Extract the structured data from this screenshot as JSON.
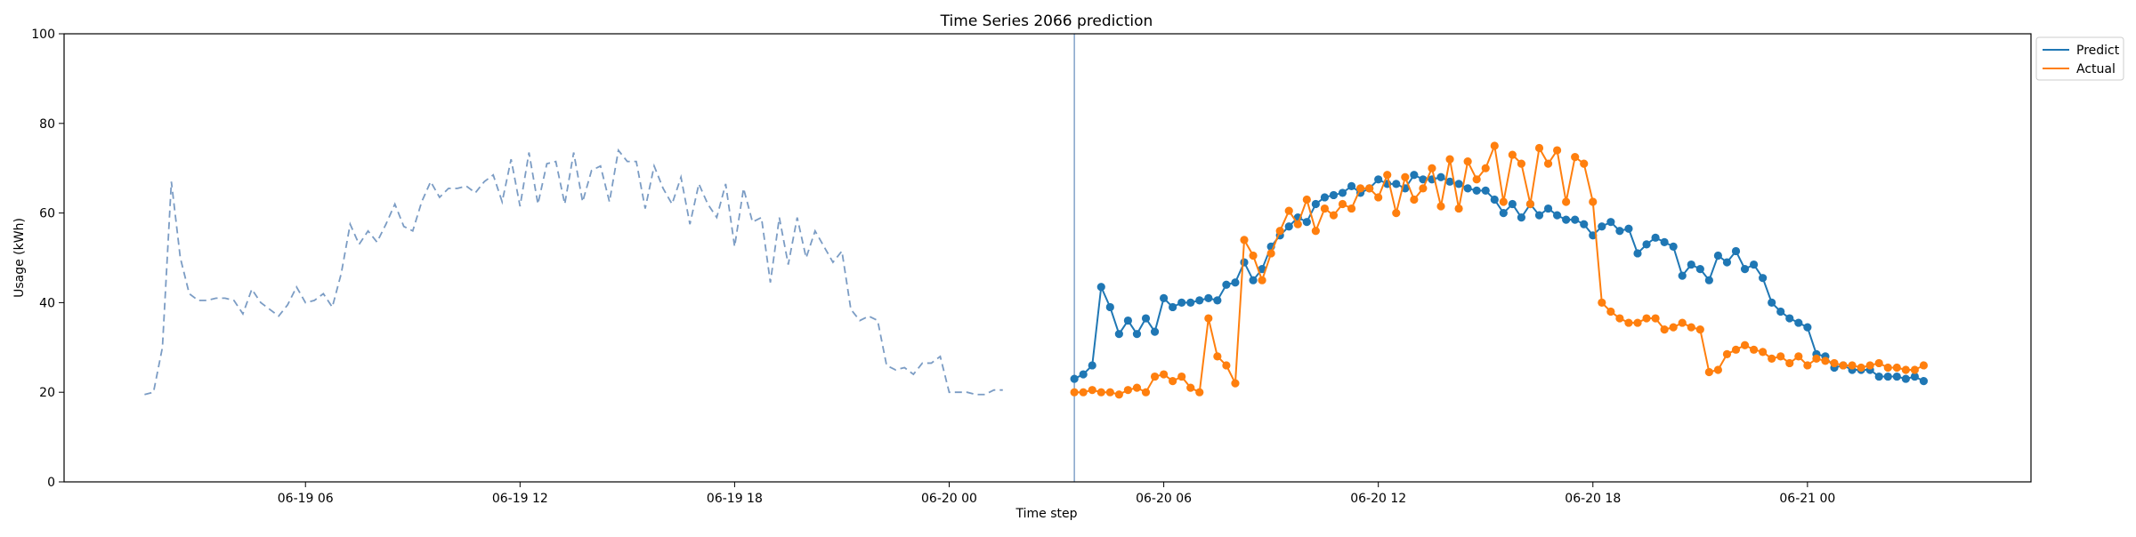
{
  "chart_data": {
    "type": "line",
    "title": "Time Series 2066 prediction",
    "xlabel": "Time step",
    "ylabel": "Usage (kWh)",
    "ylim": [
      0,
      100
    ],
    "y_ticks": [
      "0",
      "20",
      "40",
      "60",
      "80",
      "100"
    ],
    "x_ticks": [
      {
        "label": "06-19 06",
        "t": "06-19 06:00"
      },
      {
        "label": "06-19 12",
        "t": "06-19 12:00"
      },
      {
        "label": "06-19 18",
        "t": "06-19 18:00"
      },
      {
        "label": "06-20 00",
        "t": "06-20 00:00"
      },
      {
        "label": "06-20 06",
        "t": "06-20 06:00"
      },
      {
        "label": "06-20 12",
        "t": "06-20 12:00"
      },
      {
        "label": "06-20 18",
        "t": "06-20 18:00"
      },
      {
        "label": "06-21 00",
        "t": "06-21 00:00"
      }
    ],
    "xlim": [
      "06-18 23:15",
      "06-21 06:15"
    ],
    "vline_at": "06-20 03:30",
    "grid": false,
    "legend_position": "top-right",
    "history": {
      "start": "06-19 01:30",
      "step_minutes": 15,
      "color": "#7b9cc4",
      "style": "dashed",
      "values": [
        19.5,
        20,
        30,
        67,
        50,
        42,
        40.5,
        40.5,
        41,
        41,
        40.5,
        37.5,
        43,
        40,
        38.5,
        37,
        39.5,
        43.5,
        40,
        40.5,
        42,
        39,
        46.5,
        57.5,
        53,
        56,
        53.5,
        57.5,
        62,
        57,
        56,
        62.5,
        67,
        63.5,
        65.5,
        65.5,
        66,
        64.5,
        67,
        68.5,
        62.5,
        72,
        61.5,
        73.5,
        62,
        71,
        71.5,
        62,
        73.5,
        62.5,
        69.5,
        70.5,
        62.5,
        74,
        71.5,
        71.5,
        61,
        70.5,
        65.5,
        62,
        68,
        57.5,
        66.5,
        62,
        59,
        66.5,
        52.5,
        65.5,
        58,
        59,
        44.5,
        59,
        48.5,
        59,
        50,
        56,
        52.5,
        49,
        51.5,
        38.5,
        36,
        37,
        36,
        26,
        25,
        25.5,
        24,
        26.5,
        26.5,
        28,
        20,
        20,
        20,
        19.5,
        19.5,
        20.5,
        20.5
      ]
    },
    "series": [
      {
        "name": "Predict",
        "color": "#1f77b4",
        "start": "06-20 03:30",
        "step_minutes": 15,
        "values": [
          23,
          24,
          26,
          43.5,
          39,
          33,
          36,
          33,
          36.5,
          33.5,
          41,
          39,
          40,
          40,
          40.5,
          41,
          40.5,
          44,
          44.5,
          49,
          45,
          47.5,
          52.5,
          55,
          57,
          59,
          58,
          62,
          63.5,
          64,
          64.5,
          66,
          64.5,
          65.5,
          67.5,
          66.5,
          66.5,
          65.5,
          68.5,
          67.5,
          67.5,
          68,
          67,
          66.5,
          65.5,
          65,
          65,
          63,
          60,
          62,
          59,
          62,
          59.5,
          61,
          59.5,
          58.5,
          58.5,
          57.5,
          55,
          57,
          58,
          56,
          56.5,
          51,
          53,
          54.5,
          53.5,
          52.5,
          46,
          48.5,
          47.5,
          45,
          50.5,
          49,
          51.5,
          47.5,
          48.5,
          45.5,
          40,
          38,
          36.5,
          35.5,
          34.5,
          28.5,
          28,
          25.5,
          26,
          25,
          25,
          25,
          23.5,
          23.5,
          23.5,
          23,
          23.5,
          22.5
        ]
      },
      {
        "name": "Actual",
        "color": "#ff7f0e",
        "start": "06-20 03:30",
        "step_minutes": 15,
        "values": [
          20,
          20,
          20.5,
          20,
          20,
          19.5,
          20.5,
          21,
          20,
          23.5,
          24,
          22.5,
          23.5,
          21,
          20,
          36.5,
          28,
          26,
          22,
          54,
          50.5,
          45,
          51,
          56,
          60.5,
          57.5,
          63,
          56,
          61,
          59.5,
          62,
          61,
          65.5,
          65.5,
          63.5,
          68.5,
          60,
          68,
          63,
          65.5,
          70,
          61.5,
          72,
          61,
          71.5,
          67.5,
          70,
          75,
          62.5,
          73,
          71,
          62,
          74.5,
          71,
          74,
          62.5,
          72.5,
          71,
          62.5,
          40,
          38,
          36.5,
          35.5,
          35.5,
          36.5,
          36.5,
          34,
          34.5,
          35.5,
          34.5,
          34,
          24.5,
          25,
          28.5,
          29.5,
          30.5,
          29.5,
          29,
          27.5,
          28,
          26.5,
          28,
          26,
          27.5,
          27,
          26.5,
          26,
          26,
          25.5,
          26,
          26.5,
          25.5,
          25.5,
          25,
          25,
          26
        ]
      }
    ]
  }
}
